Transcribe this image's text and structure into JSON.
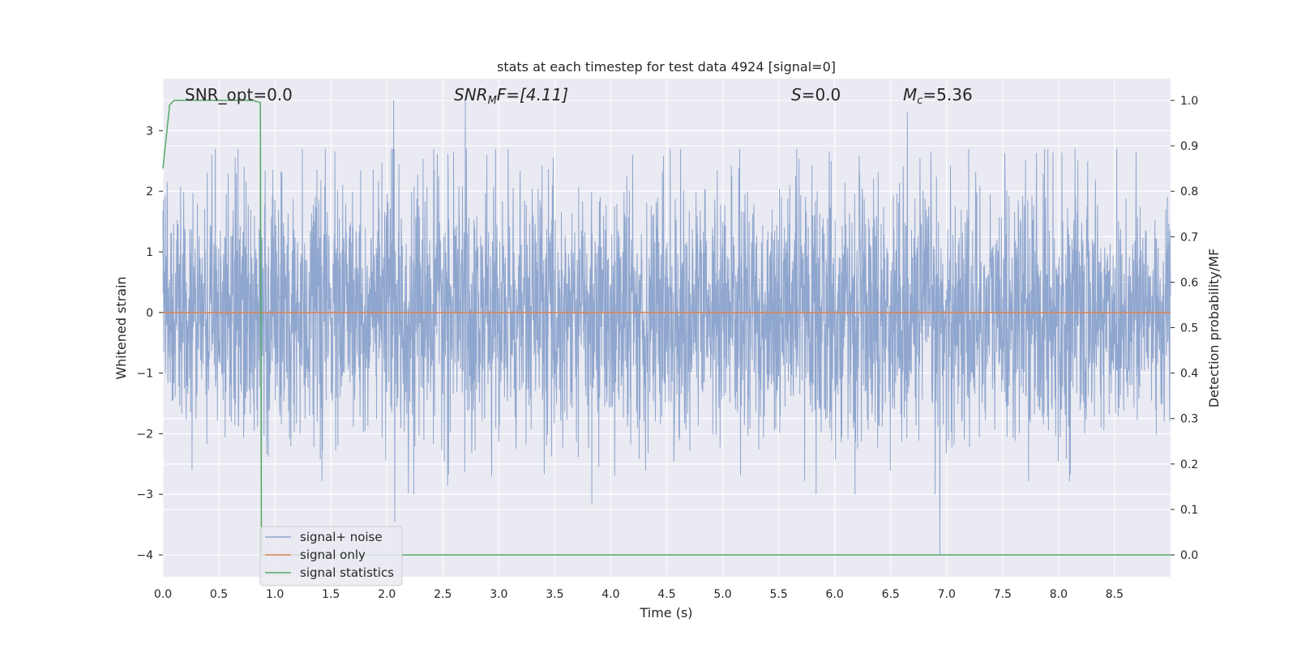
{
  "chart_data": {
    "type": "line",
    "title": "stats at each timestep for test data 4924 [signal=0]",
    "xlabel": "Time (s)",
    "ylabel_left": "Whitened strain",
    "ylabel_right": "Detection probability/MF",
    "xlim": [
      0.0,
      9.0
    ],
    "ylim_left": [
      -4.36,
      3.86
    ],
    "ylim_right": [
      -0.048,
      1.048
    ],
    "grid": true,
    "legend_position": "lower-left",
    "x_ticks": [
      "0.0",
      "0.5",
      "1.0",
      "1.5",
      "2.0",
      "2.5",
      "3.0",
      "3.5",
      "4.0",
      "4.5",
      "5.0",
      "5.5",
      "6.0",
      "6.5",
      "7.0",
      "7.5",
      "8.0",
      "8.5"
    ],
    "left_ticks": [
      "3",
      "2",
      "1",
      "0",
      "−1",
      "−2",
      "−3",
      "−4"
    ],
    "right_ticks": [
      "1.0",
      "0.9",
      "0.8",
      "0.7",
      "0.6",
      "0.5",
      "0.4",
      "0.3",
      "0.2",
      "0.1",
      "0.0"
    ],
    "annotations": {
      "snr_opt": "SNR_opt=0.0",
      "snr_mf_a": "SNR",
      "snr_mf_sub": "M",
      "snr_mf_b": "F=[4.11]",
      "s_sym": "S",
      "s_val": "=0.0",
      "mc_sym": "M",
      "mc_sub": "c",
      "mc_val": "=5.36"
    },
    "series": [
      {
        "name": "signal+ noise",
        "color": "#8FA6CE",
        "axis": "left",
        "description_level": "noise-like, roughly within ±2.5, extremes near 3.5 and −4",
        "spikes": [
          {
            "x": 2.06,
            "y": 3.5
          },
          {
            "x": 2.7,
            "y": 3.5
          },
          {
            "x": 6.65,
            "y": 3.3
          },
          {
            "x": 6.94,
            "y": -4.0
          },
          {
            "x": 2.07,
            "y": -3.45
          },
          {
            "x": 0.88,
            "y": -3.2
          },
          {
            "x": 3.83,
            "y": -3.15
          }
        ]
      },
      {
        "name": "signal only",
        "color": "#DD8452",
        "axis": "left",
        "x": [
          0.0,
          9.0
        ],
        "y": [
          0.0,
          0.0
        ]
      },
      {
        "name": "signal statistics",
        "color": "#55A868",
        "axis": "right",
        "x": [
          0.0,
          0.06,
          0.1,
          0.2,
          0.5,
          0.8,
          0.87,
          0.88,
          0.94,
          1.0,
          2.0,
          5.0,
          9.0
        ],
        "y": [
          0.85,
          0.99,
          1.0,
          1.0,
          1.0,
          1.0,
          0.995,
          0.0,
          0.0,
          0.0,
          0.0,
          0.0,
          0.0
        ]
      }
    ]
  }
}
